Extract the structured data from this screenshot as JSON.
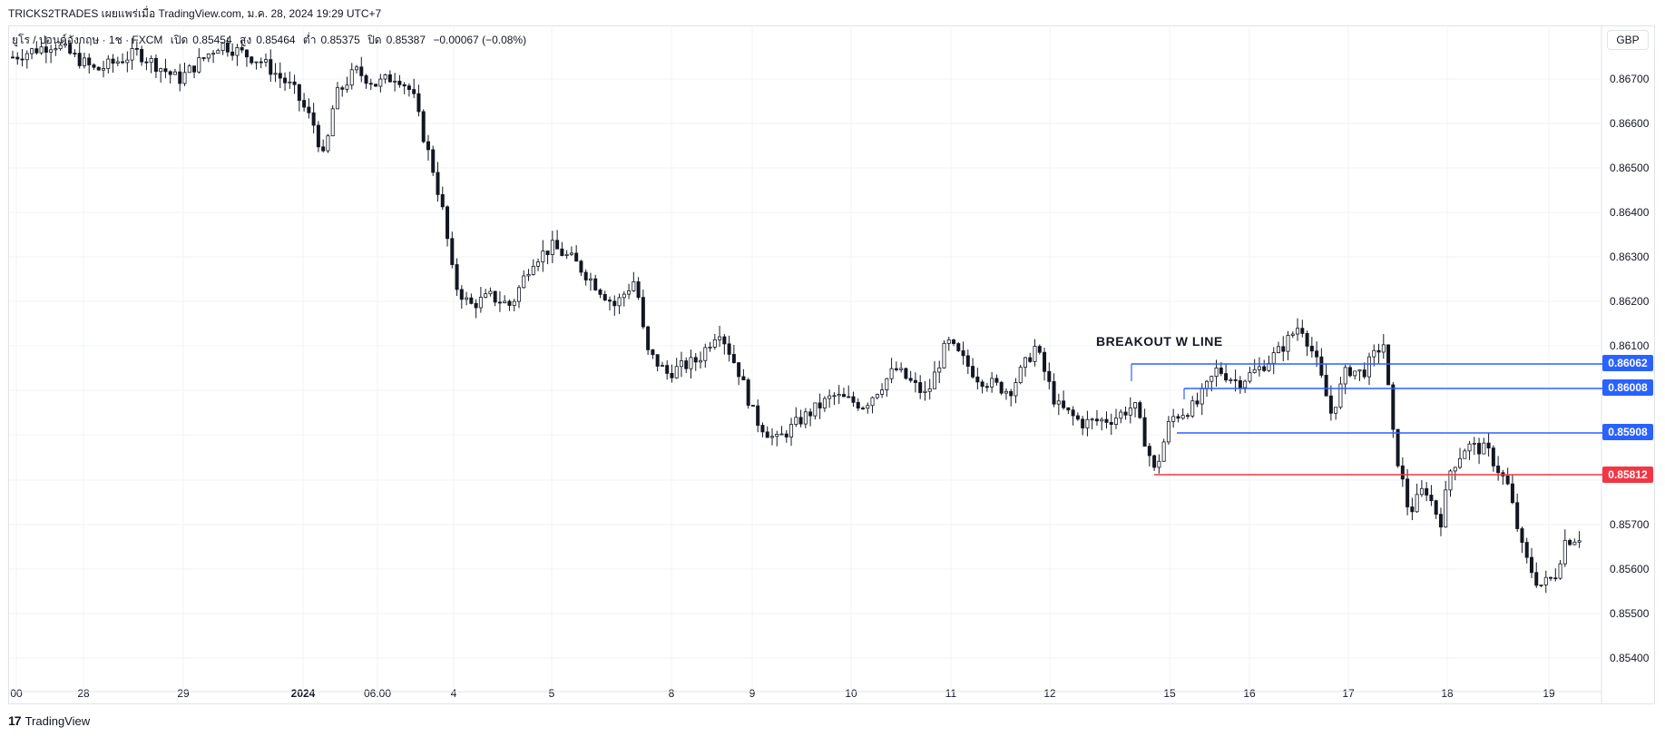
{
  "header": {
    "text": "TRICKS2TRADES เผยแพร่เมื่อ TradingView.com, ม.ค. 28, 2024 19:29 UTC+7"
  },
  "legend": {
    "symbol": "ยูโร / ปอนด์อังกฤษ · 1ช · FXCM",
    "open_label": "เปิด",
    "open": "0.85454",
    "high_label": "สูง",
    "high": "0.85464",
    "low_label": "ต่ำ",
    "low": "0.85375",
    "close_label": "ปิด",
    "close": "0.85387",
    "change": "−0.00067 (−0.08%)"
  },
  "currency": "GBP",
  "annotation": "BREAKOUT W LINE",
  "levels": [
    {
      "price": "0.86062",
      "color": "#2962ff"
    },
    {
      "price": "0.86008",
      "color": "#2962ff"
    },
    {
      "price": "0.85908",
      "color": "#2962ff"
    },
    {
      "price": "0.85812",
      "color": "#f23645"
    }
  ],
  "footer": {
    "brand": "TradingView"
  },
  "chart_data": {
    "type": "candlestick",
    "y_ticks": [
      "0.86700",
      "0.86600",
      "0.86500",
      "0.86400",
      "0.86300",
      "0.86200",
      "0.86100",
      "0.85700",
      "0.85600",
      "0.85500",
      "0.85400"
    ],
    "x_ticks": [
      "00",
      "28",
      "29",
      "2024",
      "06:00",
      "4",
      "5",
      "8",
      "9",
      "10",
      "11",
      "12",
      "15",
      "16",
      "17",
      "18",
      "19"
    ],
    "ylim": [
      0.8535,
      0.868
    ],
    "path": [
      [
        0,
        0.8675
      ],
      [
        40,
        0.8678
      ],
      [
        80,
        0.8672
      ],
      [
        120,
        0.8676
      ],
      [
        160,
        0.867
      ],
      [
        200,
        0.8678
      ],
      [
        240,
        0.8674
      ],
      [
        270,
        0.8668
      ],
      [
        290,
        0.866
      ],
      [
        300,
        0.8652
      ],
      [
        310,
        0.8666
      ],
      [
        330,
        0.8672
      ],
      [
        350,
        0.8669
      ],
      [
        370,
        0.8671
      ],
      [
        385,
        0.8667
      ],
      [
        395,
        0.8658
      ],
      [
        405,
        0.865
      ],
      [
        415,
        0.864
      ],
      [
        425,
        0.8625
      ],
      [
        440,
        0.862
      ],
      [
        460,
        0.8622
      ],
      [
        480,
        0.862
      ],
      [
        500,
        0.863
      ],
      [
        520,
        0.8633
      ],
      [
        540,
        0.863
      ],
      [
        560,
        0.8625
      ],
      [
        580,
        0.862
      ],
      [
        600,
        0.8626
      ],
      [
        610,
        0.861
      ],
      [
        630,
        0.8605
      ],
      [
        660,
        0.8608
      ],
      [
        680,
        0.8615
      ],
      [
        700,
        0.8605
      ],
      [
        715,
        0.8595
      ],
      [
        735,
        0.859
      ],
      [
        760,
        0.8595
      ],
      [
        790,
        0.86
      ],
      [
        820,
        0.8598
      ],
      [
        850,
        0.8606
      ],
      [
        880,
        0.86
      ],
      [
        900,
        0.8612
      ],
      [
        930,
        0.8604
      ],
      [
        960,
        0.8601
      ],
      [
        985,
        0.8611
      ],
      [
        1005,
        0.8598
      ],
      [
        1030,
        0.8594
      ],
      [
        1060,
        0.8595
      ],
      [
        1080,
        0.8598
      ],
      [
        1100,
        0.8583
      ],
      [
        1115,
        0.8595
      ],
      [
        1140,
        0.8598
      ],
      [
        1160,
        0.8606
      ],
      [
        1180,
        0.8603
      ],
      [
        1200,
        0.8606
      ],
      [
        1220,
        0.861
      ],
      [
        1240,
        0.8616
      ],
      [
        1255,
        0.8608
      ],
      [
        1270,
        0.8596
      ],
      [
        1285,
        0.8606
      ],
      [
        1300,
        0.8605
      ],
      [
        1320,
        0.8612
      ],
      [
        1330,
        0.859
      ],
      [
        1345,
        0.8574
      ],
      [
        1360,
        0.858
      ],
      [
        1375,
        0.8572
      ],
      [
        1385,
        0.8584
      ],
      [
        1400,
        0.8589
      ],
      [
        1420,
        0.8588
      ],
      [
        1440,
        0.858
      ],
      [
        1455,
        0.8565
      ],
      [
        1470,
        0.8558
      ],
      [
        1485,
        0.856
      ],
      [
        1495,
        0.8568
      ],
      [
        1510,
        0.8569
      ]
    ]
  }
}
